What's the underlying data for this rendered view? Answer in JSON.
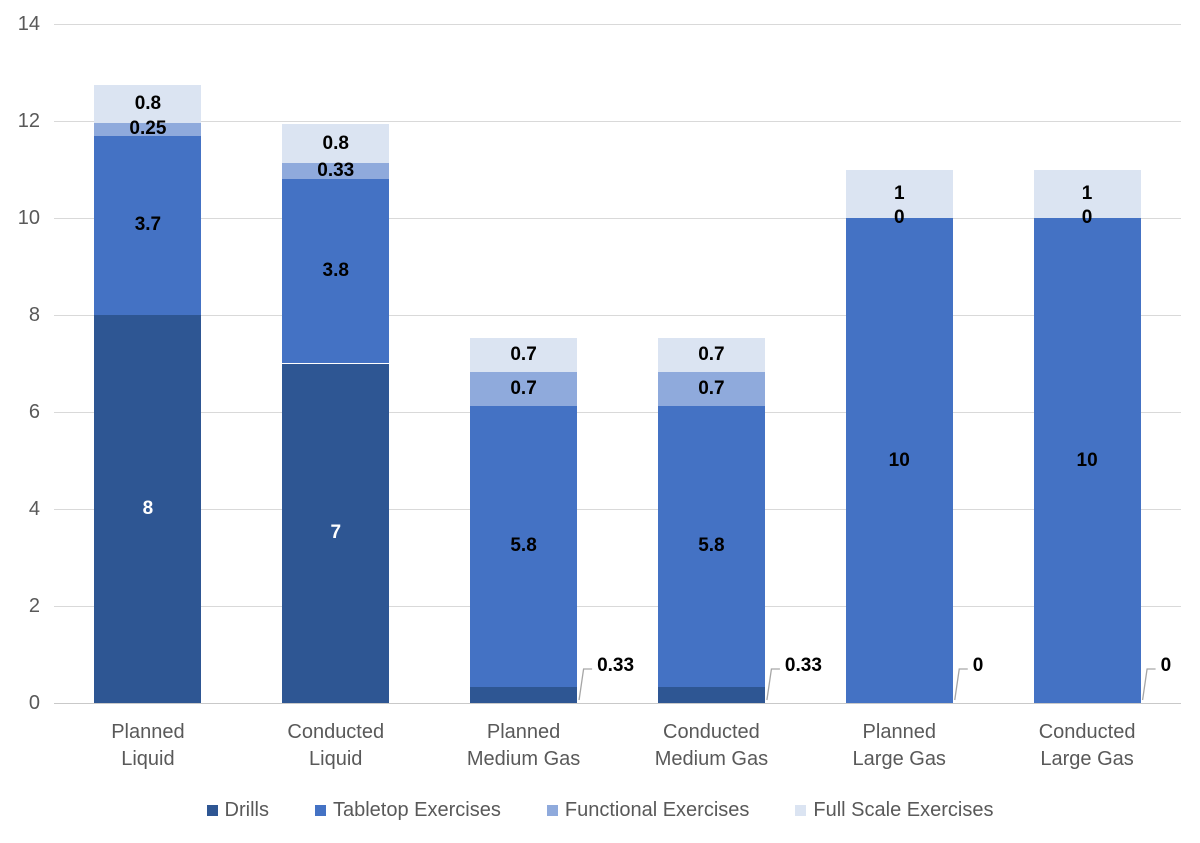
{
  "chart_data": {
    "type": "bar",
    "stacked": true,
    "title": "",
    "categories": [
      [
        "Planned",
        "Liquid"
      ],
      [
        "Conducted",
        "Liquid"
      ],
      [
        "Planned",
        "Medium Gas"
      ],
      [
        "Conducted",
        "Medium Gas"
      ],
      [
        "Planned",
        "Large Gas"
      ],
      [
        "Conducted",
        "Large Gas"
      ]
    ],
    "series": [
      {
        "name": "Drills",
        "color": "#2E5693",
        "inside_label_color": "#FFFFFF",
        "values": [
          8,
          7,
          0.33,
          0.33,
          0,
          0
        ],
        "labels": [
          "8",
          "7",
          "0.33",
          "0.33",
          "0",
          "0"
        ],
        "label_outside": [
          false,
          false,
          true,
          true,
          true,
          true
        ]
      },
      {
        "name": "Tabletop Exercises",
        "color": "#4472C4",
        "inside_label_color": "#000000",
        "values": [
          3.7,
          3.8,
          5.8,
          5.8,
          10,
          10
        ],
        "labels": [
          "3.7",
          "3.8",
          "5.8",
          "5.8",
          "10",
          "10"
        ],
        "label_outside": [
          false,
          false,
          false,
          false,
          false,
          false
        ]
      },
      {
        "name": "Functional Exercises",
        "color": "#8FAADC",
        "inside_label_color": "#000000",
        "values": [
          0.25,
          0.33,
          0.7,
          0.7,
          0,
          0
        ],
        "labels": [
          "0.25",
          "0.33",
          "0.7",
          "0.7",
          "0",
          "0"
        ],
        "label_outside": [
          false,
          false,
          false,
          false,
          false,
          false
        ]
      },
      {
        "name": "Full Scale Exercises",
        "color": "#DBE4F2",
        "inside_label_color": "#000000",
        "values": [
          0.8,
          0.8,
          0.7,
          0.7,
          1,
          1
        ],
        "labels": [
          "0.8",
          "0.8",
          "0.7",
          "0.7",
          "1",
          "1"
        ],
        "label_outside": [
          false,
          false,
          false,
          false,
          false,
          false
        ]
      }
    ],
    "y_axis": {
      "min": 0,
      "max": 14,
      "step": 2,
      "tick_labels": [
        "0",
        "2",
        "4",
        "6",
        "8",
        "10",
        "12",
        "14"
      ]
    },
    "grid": true,
    "legend": {
      "position": "bottom",
      "items": [
        "Drills",
        "Tabletop Exercises",
        "Functional Exercises",
        "Full Scale Exercises"
      ]
    },
    "colors": {
      "background": "#FFFFFF",
      "gridline": "#D9D9D9",
      "axis_line": "#C9C9C9",
      "axis_text": "#595959",
      "data_label": "#000000",
      "leader_line": "#A6A6A6"
    }
  }
}
